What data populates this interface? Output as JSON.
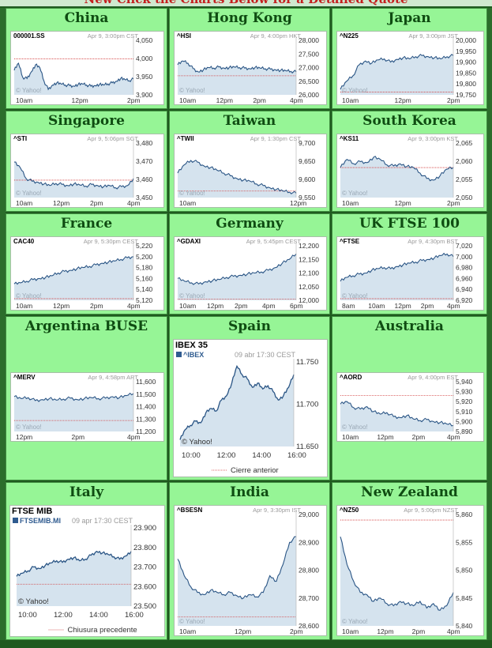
{
  "page": {
    "header": "New Click the Charts Below for a Detailed Quote"
  },
  "markets": [
    {
      "title": "China",
      "symbol": "000001.SS",
      "stamp": "Apr 9, 3:00pm CST",
      "y_ticks": [
        "4,050",
        "4,000",
        "3,950",
        "3,900"
      ],
      "x_ticks": [
        "10am",
        "12pm",
        "2pm"
      ],
      "watermark": "© Yahoo!",
      "chart_data": {
        "type": "area",
        "prev_close_level": 0.66,
        "values": [
          0.45,
          0.58,
          0.32,
          0.3,
          0.42,
          0.55,
          0.5,
          0.25,
          0.1,
          0.18,
          0.22,
          0.2,
          0.18,
          0.17,
          0.16,
          0.19,
          0.2,
          0.18,
          0.16,
          0.17,
          0.19,
          0.18,
          0.2,
          0.22,
          0.25,
          0.3,
          0.28,
          0.26,
          0.29
        ]
      }
    },
    {
      "title": "Hong Kong",
      "symbol": "^HSI",
      "stamp": "Apr 9, 4:00pm HKT",
      "y_ticks": [
        "28,000",
        "27,500",
        "27,000",
        "26,500",
        "26,000"
      ],
      "x_ticks": [
        "10am",
        "12pm",
        "2pm",
        "4pm"
      ],
      "watermark": "© Yahoo!",
      "chart_data": {
        "type": "area",
        "prev_close_level": 0.35,
        "values": [
          0.55,
          0.62,
          0.58,
          0.48,
          0.42,
          0.46,
          0.5,
          0.49,
          0.51,
          0.49,
          0.5,
          0.51,
          0.5,
          0.49,
          0.48,
          0.5,
          0.49,
          0.48,
          0.47,
          0.46,
          0.45,
          0.44,
          0.43,
          0.42
        ]
      }
    },
    {
      "title": "Japan",
      "symbol": "^N225",
      "stamp": "Apr 9, 3:00pm JST",
      "y_ticks": [
        "20,000",
        "19,950",
        "19,900",
        "19,850",
        "19,800",
        "19,750"
      ],
      "x_ticks": [
        "10am",
        "12pm",
        "2pm"
      ],
      "watermark": "© Yahoo!",
      "chart_data": {
        "type": "area",
        "prev_close_level": 0.05,
        "values": [
          0.1,
          0.25,
          0.35,
          0.55,
          0.62,
          0.58,
          0.64,
          0.66,
          0.6,
          0.65,
          0.68,
          0.66,
          0.7,
          0.72,
          0.7,
          0.68,
          0.66,
          0.7,
          0.72
        ]
      }
    },
    {
      "title": "Singapore",
      "symbol": "^STI",
      "stamp": "Apr 9, 5:06pm SGT",
      "y_ticks": [
        "3,480",
        "3,470",
        "3,460",
        "3,450"
      ],
      "x_ticks": [
        "10am",
        "12pm",
        "2pm",
        "4pm"
      ],
      "watermark": "© Yahoo!",
      "chart_data": {
        "type": "area",
        "prev_close_level": 0.32,
        "values": [
          0.65,
          0.55,
          0.35,
          0.3,
          0.28,
          0.25,
          0.22,
          0.26,
          0.24,
          0.22,
          0.25,
          0.23,
          0.21,
          0.24,
          0.22,
          0.2,
          0.22,
          0.18,
          0.2,
          0.22,
          0.35
        ]
      }
    },
    {
      "title": "Taiwan",
      "symbol": "^TWII",
      "stamp": "Apr 9, 1:30pm CST",
      "y_ticks": [
        "9,700",
        "9,650",
        "9,600",
        "9,550"
      ],
      "x_ticks": [
        "10am",
        "12pm"
      ],
      "watermark": "© Yahoo!",
      "chart_data": {
        "type": "area",
        "prev_close_level": 0.12,
        "values": [
          0.45,
          0.6,
          0.68,
          0.65,
          0.58,
          0.55,
          0.5,
          0.45,
          0.4,
          0.35,
          0.32,
          0.3,
          0.25,
          0.22,
          0.18,
          0.15,
          0.12,
          0.1,
          0.08
        ]
      }
    },
    {
      "title": "South Korea",
      "symbol": "^KS11",
      "stamp": "Apr 9, 3:00pm KST",
      "y_ticks": [
        "2,065",
        "2,060",
        "2,055",
        "2,050"
      ],
      "x_ticks": [
        "10am",
        "12pm",
        "2pm"
      ],
      "watermark": "© Yahoo!",
      "chart_data": {
        "type": "area",
        "prev_close_level": 0.55,
        "values": [
          0.55,
          0.7,
          0.62,
          0.66,
          0.64,
          0.74,
          0.7,
          0.6,
          0.58,
          0.62,
          0.57,
          0.55,
          0.45,
          0.35,
          0.32,
          0.4,
          0.52,
          0.55
        ]
      }
    },
    {
      "title": "France",
      "symbol": "CAC40",
      "stamp": "Apr 9, 5:30pm CEST",
      "y_ticks": [
        "5,220",
        "5,200",
        "5,180",
        "5,160",
        "5,140",
        "5,120"
      ],
      "x_ticks": [
        "10am",
        "12pm",
        "2pm",
        "4pm"
      ],
      "watermark": "© Yahoo!",
      "chart_data": {
        "type": "area",
        "prev_close_level": 0.03,
        "values": [
          0.3,
          0.32,
          0.35,
          0.38,
          0.4,
          0.42,
          0.45,
          0.5,
          0.53,
          0.55,
          0.58,
          0.6,
          0.62,
          0.65,
          0.68,
          0.7,
          0.72,
          0.75,
          0.78,
          0.8
        ]
      }
    },
    {
      "title": "Germany",
      "symbol": "^GDAXI",
      "stamp": "Apr 9, 5:45pm CEST",
      "y_ticks": [
        "12,200",
        "12,150",
        "12,100",
        "12,050",
        "12,000"
      ],
      "x_ticks": [
        "10am",
        "12pm",
        "2pm",
        "4pm",
        "6pm"
      ],
      "watermark": "© Yahoo!",
      "chart_data": {
        "type": "area",
        "prev_close_level": 0.02,
        "values": [
          0.4,
          0.35,
          0.32,
          0.3,
          0.34,
          0.36,
          0.38,
          0.42,
          0.44,
          0.46,
          0.48,
          0.5,
          0.52,
          0.55,
          0.6,
          0.68,
          0.75,
          0.85
        ]
      }
    },
    {
      "title": "UK FTSE 100",
      "symbol": "^FTSE",
      "stamp": "Apr 9, 4:30pm BST",
      "y_ticks": [
        "7,020",
        "7,000",
        "6,980",
        "6,960",
        "6,940",
        "6,920"
      ],
      "x_ticks": [
        "8am",
        "10am",
        "12pm",
        "2pm",
        "4pm"
      ],
      "watermark": "© Yahoo!",
      "chart_data": {
        "type": "area",
        "prev_close_level": 0.03,
        "values": [
          0.35,
          0.42,
          0.45,
          0.48,
          0.5,
          0.55,
          0.58,
          0.6,
          0.58,
          0.62,
          0.65,
          0.68,
          0.7,
          0.73,
          0.75,
          0.78,
          0.82,
          0.85,
          0.8
        ]
      }
    },
    {
      "title": "Argentina BUSE",
      "symbol": "^MERV",
      "stamp": "Apr 9, 4:58pm ART",
      "y_ticks": [
        "11,600",
        "11,500",
        "11,400",
        "11,300",
        "11,200"
      ],
      "x_ticks": [
        "12pm",
        "2pm",
        "4pm"
      ],
      "watermark": "© Yahoo!",
      "chart_data": {
        "type": "area",
        "prev_close_level": 0.22,
        "values": [
          0.7,
          0.66,
          0.68,
          0.62,
          0.64,
          0.66,
          0.63,
          0.65,
          0.67,
          0.64,
          0.66,
          0.68,
          0.66,
          0.67,
          0.7,
          0.68,
          0.72,
          0.76
        ]
      }
    },
    {
      "title": "Spain",
      "symbol": "IBEX 35",
      "legend": "^IBEX",
      "stamp": "09 abr 17:30 CEST",
      "y_ticks": [
        "11.750",
        "11.700",
        "11.650"
      ],
      "x_ticks": [
        "10:00",
        "12:00",
        "14:00",
        "16:00"
      ],
      "footnote": "Cierre anterior",
      "watermark": "© Yahoo!",
      "chart_data": {
        "type": "area",
        "values": [
          0.08,
          0.2,
          0.25,
          0.3,
          0.28,
          0.4,
          0.45,
          0.42,
          0.55,
          0.6,
          0.75,
          0.95,
          0.85,
          0.8,
          0.7,
          0.75,
          0.68,
          0.72,
          0.65,
          0.55,
          0.6,
          0.7,
          0.85
        ]
      }
    },
    {
      "title": "Australia",
      "symbol": "^AORD",
      "stamp": "Apr 9, 4:00pm EST",
      "y_ticks": [
        "5,940",
        "5,930",
        "5,920",
        "5,910",
        "5,900",
        "5,890"
      ],
      "x_ticks": [
        "10am",
        "12pm",
        "2pm",
        "4pm"
      ],
      "watermark": "© Yahoo!",
      "chart_data": {
        "type": "area",
        "prev_close_level": 0.72,
        "values": [
          0.55,
          0.6,
          0.48,
          0.45,
          0.5,
          0.4,
          0.35,
          0.38,
          0.3,
          0.28,
          0.32,
          0.25,
          0.22,
          0.24,
          0.2,
          0.18,
          0.15,
          0.12
        ]
      }
    },
    {
      "title": "Italy",
      "symbol": "FTSE MIB",
      "legend": "FTSEMIB.MI",
      "stamp": "09 apr 17:30 CEST",
      "y_ticks": [
        "23.900",
        "23.800",
        "23.700",
        "23.600",
        "23.500"
      ],
      "x_ticks": [
        "10:00",
        "12:00",
        "14:00",
        "16:00"
      ],
      "footnote": "Chiusura precedente",
      "watermark": "© Yahoo!",
      "chart_data": {
        "type": "area",
        "prev_close_level": 0.28,
        "values": [
          0.38,
          0.42,
          0.45,
          0.5,
          0.48,
          0.52,
          0.55,
          0.58,
          0.56,
          0.6,
          0.62,
          0.58,
          0.6,
          0.65,
          0.7,
          0.68,
          0.66,
          0.63,
          0.6,
          0.64,
          0.7
        ]
      }
    },
    {
      "title": "India",
      "symbol": "^BSESN",
      "stamp": "Apr 9, 3:30pm IST",
      "y_ticks": [
        "29,000",
        "28,900",
        "28,800",
        "28,700",
        "28,600"
      ],
      "x_ticks": [
        "10am",
        "12pm",
        "2pm"
      ],
      "watermark": "© Yahoo!",
      "chart_data": {
        "type": "area",
        "prev_close_level": 0.08,
        "values": [
          0.6,
          0.45,
          0.35,
          0.3,
          0.28,
          0.32,
          0.3,
          0.28,
          0.3,
          0.27,
          0.25,
          0.28,
          0.26,
          0.3,
          0.45,
          0.4,
          0.55,
          0.75,
          0.8
        ]
      }
    },
    {
      "title": "New Zealand",
      "symbol": "^NZ50",
      "stamp": "Apr 9, 5:00pm NZST",
      "y_ticks": [
        "5,860",
        "5,855",
        "5,850",
        "5,845",
        "5,840"
      ],
      "x_ticks": [
        "10am",
        "12pm",
        "2pm",
        "4pm"
      ],
      "watermark": "© Yahoo!",
      "chart_data": {
        "type": "area",
        "prev_close_level": 0.95,
        "values": [
          0.8,
          0.55,
          0.4,
          0.3,
          0.28,
          0.22,
          0.25,
          0.2,
          0.18,
          0.22,
          0.2,
          0.18,
          0.22,
          0.16,
          0.2,
          0.14,
          0.18,
          0.3
        ]
      }
    }
  ]
}
